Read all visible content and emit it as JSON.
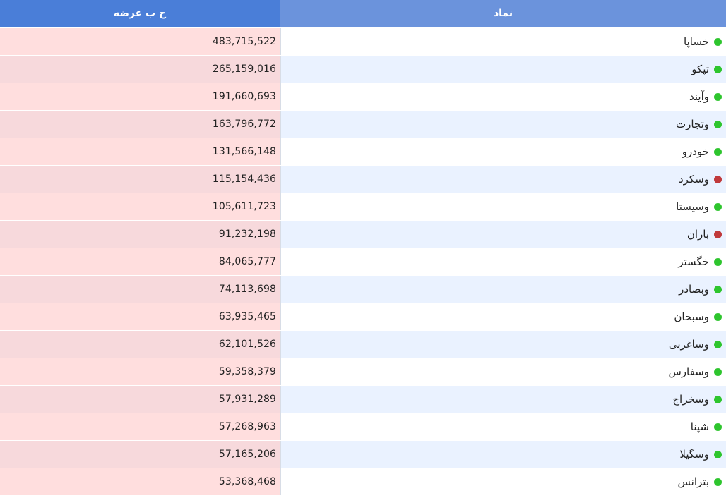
{
  "header": {
    "symbol_label": "نماد",
    "volume_label": "ح ب عرضه"
  },
  "colors": {
    "header_volume": "#4a7ed8",
    "header_symbol": "#6b93dc",
    "up_dot": "#2ec52e",
    "down_dot": "#c0393b",
    "volume_bg_odd": "#ffdede",
    "volume_bg_even": "#f7d9dc",
    "symbol_bg_even": "#eaf2ff"
  },
  "rows": [
    {
      "symbol": "خساپا",
      "status": "up",
      "volume": "483,715,522"
    },
    {
      "symbol": "تپکو",
      "status": "up",
      "volume": "265,159,016"
    },
    {
      "symbol": "وآیند",
      "status": "up",
      "volume": "191,660,693"
    },
    {
      "symbol": "وتجارت",
      "status": "up",
      "volume": "163,796,772"
    },
    {
      "symbol": "خودرو",
      "status": "up",
      "volume": "131,566,148"
    },
    {
      "symbol": "وسکرد",
      "status": "down",
      "volume": "115,154,436"
    },
    {
      "symbol": "وسیستا",
      "status": "up",
      "volume": "105,611,723"
    },
    {
      "symbol": "باران",
      "status": "down",
      "volume": "91,232,198"
    },
    {
      "symbol": "خگستر",
      "status": "up",
      "volume": "84,065,777"
    },
    {
      "symbol": "وبصادر",
      "status": "up",
      "volume": "74,113,698"
    },
    {
      "symbol": "وسبحان",
      "status": "up",
      "volume": "63,935,465"
    },
    {
      "symbol": "وساغربی",
      "status": "up",
      "volume": "62,101,526"
    },
    {
      "symbol": "وسفارس",
      "status": "up",
      "volume": "59,358,379"
    },
    {
      "symbol": "وسخراج",
      "status": "up",
      "volume": "57,931,289"
    },
    {
      "symbol": "شپنا",
      "status": "up",
      "volume": "57,268,963"
    },
    {
      "symbol": "وسگیلا",
      "status": "up",
      "volume": "57,165,206"
    },
    {
      "symbol": "بترانس",
      "status": "up",
      "volume": "53,368,468"
    }
  ]
}
